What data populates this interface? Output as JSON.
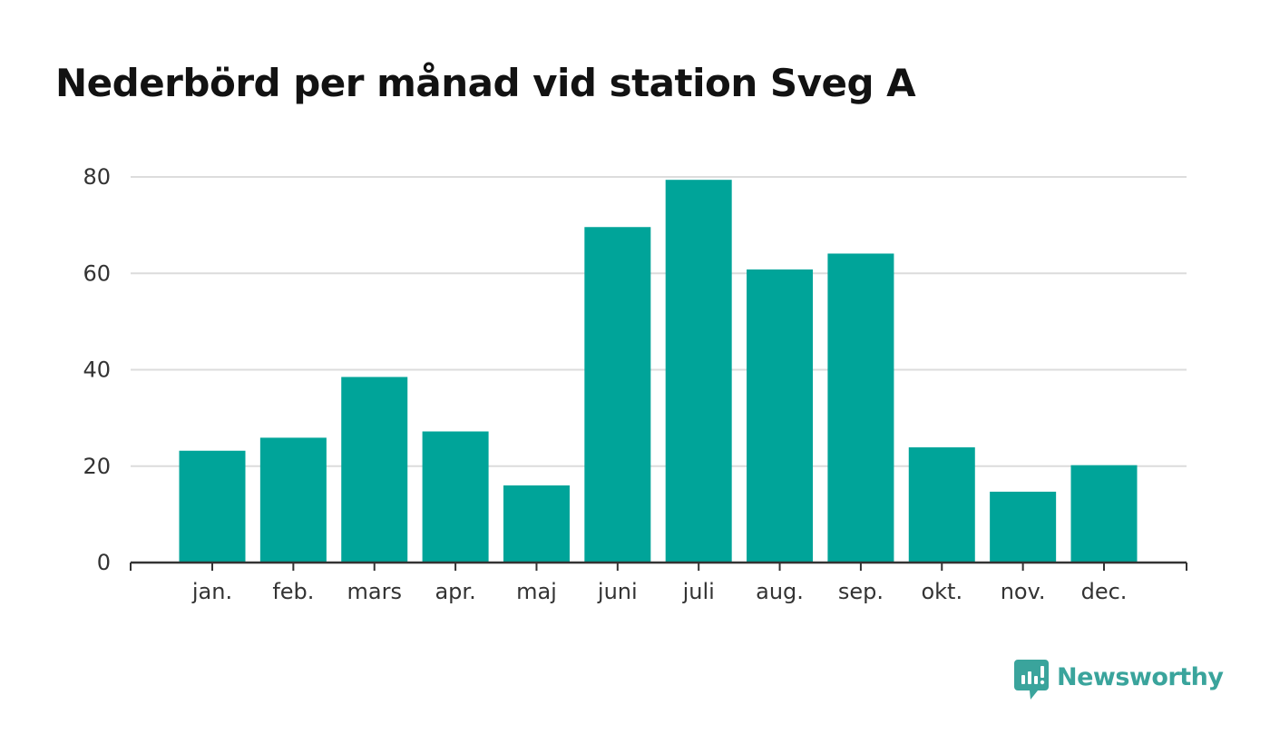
{
  "chart_data": {
    "type": "bar",
    "title": "Nederbörd per månad vid station Sveg A",
    "xlabel": "",
    "ylabel": "",
    "categories": [
      "jan.",
      "feb.",
      "mars",
      "apr.",
      "maj",
      "juni",
      "juli",
      "aug.",
      "sep.",
      "okt.",
      "nov.",
      "dec."
    ],
    "values": [
      23.2,
      25.9,
      38.5,
      27.2,
      16.0,
      69.6,
      79.4,
      60.8,
      64.1,
      23.9,
      14.7,
      20.2
    ],
    "ylim": [
      0,
      80
    ],
    "yticks": [
      "0",
      "20",
      "40",
      "60",
      "80"
    ],
    "grid": true,
    "legend": "none",
    "colors": {
      "bar": "#00a499",
      "grid": "#dcdcdc",
      "axis": "#333333",
      "text": "#333333",
      "title": "#121212"
    }
  },
  "brand": {
    "name": "Newsworthy",
    "icon": "newsworthy-logo-icon",
    "color": "#3aa49c"
  }
}
